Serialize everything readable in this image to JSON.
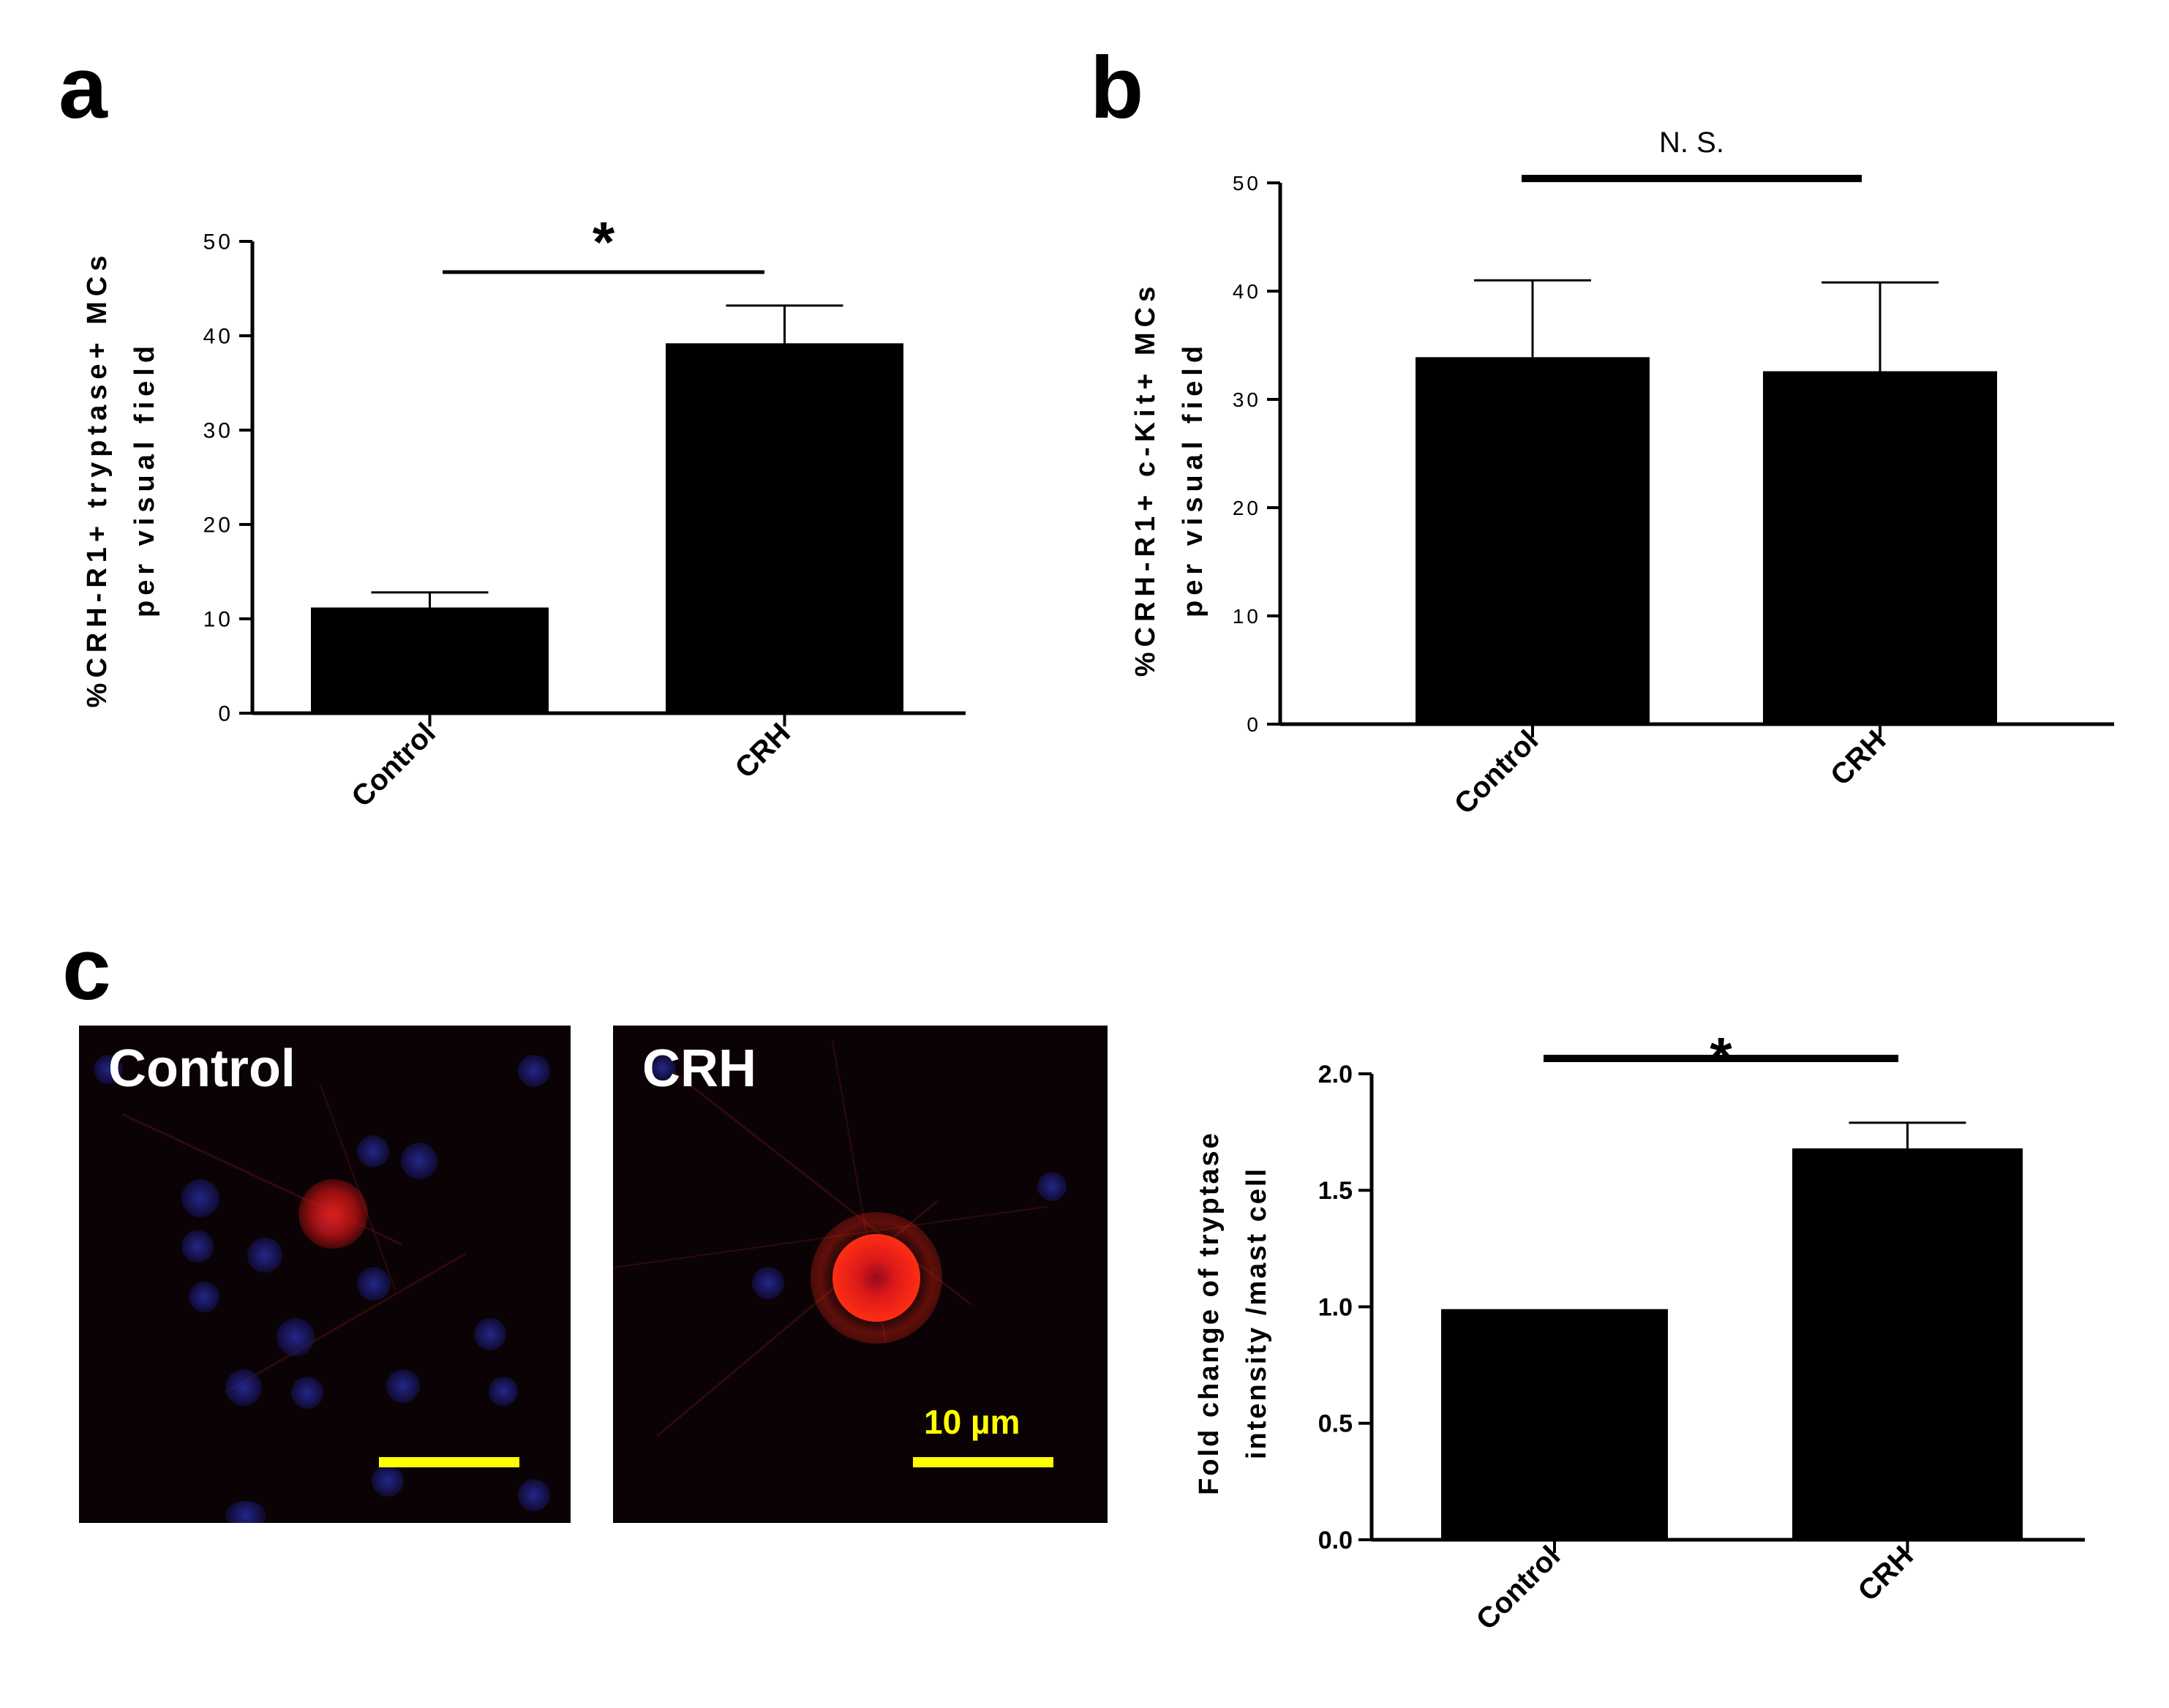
{
  "panels": {
    "a": "a",
    "b": "b",
    "c": "c"
  },
  "chart_data": [
    {
      "id": "a",
      "type": "bar",
      "categories": [
        "Control",
        "CRH"
      ],
      "values": [
        11.2,
        39.2
      ],
      "errors": [
        1.6,
        4.0
      ],
      "ylabel_line1": "%CRH-R1+ tryptase+ MCs",
      "ylabel_line2": "per visual field",
      "ylim": [
        0,
        50
      ],
      "yticks": [
        "0",
        "10",
        "20",
        "30",
        "40",
        "50"
      ],
      "significance": "*",
      "colors": {
        "bar": "#000000"
      }
    },
    {
      "id": "b",
      "type": "bar",
      "categories": [
        "Control",
        "CRH"
      ],
      "values": [
        33.9,
        32.6
      ],
      "errors": [
        7.1,
        8.2
      ],
      "ylabel_line1": "%CRH-R1+ c-Kit+ MCs",
      "ylabel_line2": "per visual field",
      "ylim": [
        0,
        50
      ],
      "yticks": [
        "0",
        "10",
        "20",
        "30",
        "40",
        "50"
      ],
      "significance": "N. S.",
      "colors": {
        "bar": "#000000"
      }
    },
    {
      "id": "c",
      "type": "bar",
      "categories": [
        "Control",
        "CRH"
      ],
      "values": [
        0.99,
        1.68
      ],
      "errors": [
        0,
        0.11
      ],
      "ylabel_line1": "Fold change of tryptase",
      "ylabel_line2": "intensity /mast cell",
      "ylim": [
        0,
        2.0
      ],
      "yticks": [
        "0.0",
        "0.5",
        "1.0",
        "1.5",
        "2.0"
      ],
      "significance": "*",
      "colors": {
        "bar": "#000000"
      }
    }
  ],
  "micrographs": [
    {
      "label": "Control",
      "scale_text": ""
    },
    {
      "label": "CRH",
      "scale_text": "10 µm"
    }
  ],
  "colors": {
    "micro_background": "#0b0205",
    "scale_bar": "#ffff00",
    "nuclei": "#2a2da0",
    "tryptase": "#ff2a10"
  }
}
